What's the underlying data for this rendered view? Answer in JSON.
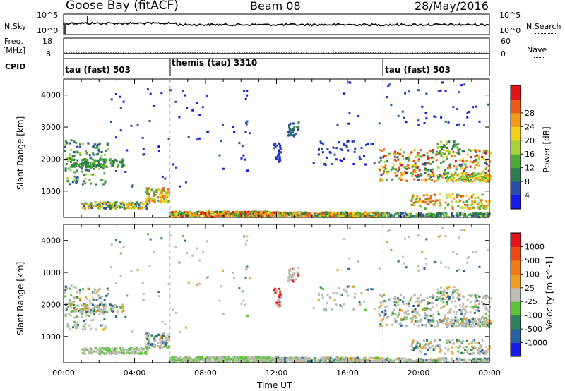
{
  "header": {
    "station": "Goose Bay (fitACF)",
    "beam": "Beam 08",
    "date": "28/May/2016"
  },
  "top_panels": {
    "nsky_label": "N.Sky",
    "nsky_ticks": [
      "10^5",
      "10^0"
    ],
    "nsearch_label": "N.Search",
    "nsearch_ticks": [
      "10^5",
      "10^0"
    ],
    "freq_label": "Freq.",
    "freq_unit": "[MHz]",
    "freq_ticks": [
      "18",
      "8"
    ],
    "nave_label": "Nave",
    "nave_ticks": [
      "60",
      "0"
    ],
    "cpid_label": "CPID",
    "cpid_segments": [
      {
        "label": "tau (fast) 503",
        "start_hour": 0
      },
      {
        "label": "themis (tau) 3310",
        "start_hour": 6
      },
      {
        "label": "tau (fast) 503",
        "start_hour": 18
      }
    ]
  },
  "chart_data": [
    {
      "type": "heatmap",
      "title": "",
      "xlabel": "",
      "ylabel": "Slant Range [km]",
      "xlim_hours": [
        0,
        24
      ],
      "ylim_km": [
        180,
        4500
      ],
      "yticks": [
        1000,
        2000,
        3000,
        4000
      ],
      "colorbar": {
        "label": "Power [dB]",
        "ticks": [
          "4",
          "8",
          "12",
          "16",
          "20",
          "24",
          "28"
        ],
        "colors": [
          "#1a1ae6",
          "#2a4fa6",
          "#2f7a4f",
          "#4fa83a",
          "#a9d23a",
          "#f2d21a",
          "#f29a1a",
          "#ec5a14",
          "#e0141a"
        ]
      }
    },
    {
      "type": "heatmap",
      "title": "",
      "xlabel": "Time UT",
      "ylabel": "Slant Range [km]",
      "xlim_hours": [
        0,
        24
      ],
      "ylim_km": [
        180,
        4500
      ],
      "yticks": [
        1000,
        2000,
        3000,
        4000
      ],
      "xticks": [
        "00:00",
        "04:00",
        "08:00",
        "12:00",
        "16:00",
        "20:00",
        "00:00"
      ],
      "colorbar": {
        "label": "Velocity [m s^-1]",
        "ticks": [
          "1000",
          "500",
          "100",
          "25",
          "-25",
          "-100",
          "-500",
          "-1000"
        ],
        "colors": [
          "#1a1ae6",
          "#2a5fa0",
          "#2f8060",
          "#5ec23a",
          "#bdbdb3",
          "#f0a020",
          "#f07a18",
          "#ec4814",
          "#e0141a"
        ]
      }
    }
  ]
}
